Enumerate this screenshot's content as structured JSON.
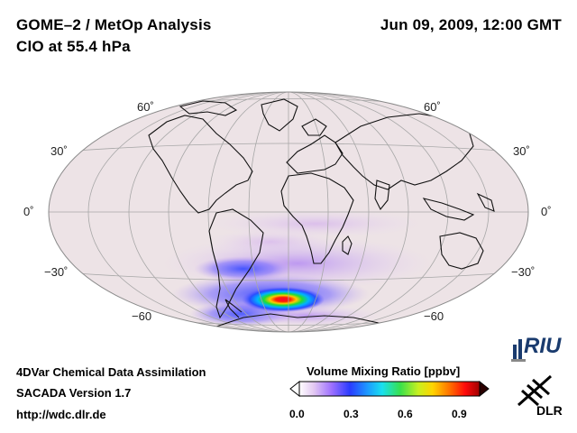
{
  "header": {
    "title_line1": "GOME–2 / MetOp Analysis",
    "title_line2": "ClO at 55.4 hPa",
    "datetime": "Jun 09, 2009, 12:00 GMT"
  },
  "map": {
    "projection": "Hammer-Aitoff",
    "lat_labels": {
      "n60": "60˚",
      "n30": "30˚",
      "eq": "0˚",
      "s30": "−30˚",
      "s60": "−60"
    }
  },
  "footer": {
    "line1": "4DVar Chemical Data Assimilation",
    "line2": "SACADA Version 1.7",
    "line3": "http://wdc.dlr.de"
  },
  "colorbar": {
    "title": "Volume Mixing Ratio [ppbv]",
    "ticks": [
      "0.0",
      "0.3",
      "0.6",
      "0.9"
    ],
    "range": [
      0.0,
      1.0
    ]
  },
  "logos": {
    "riu_text": "RIU",
    "dlr_text": "DLR"
  },
  "colors": {
    "ocean_land_bg": "#ede3e6",
    "grid": "#a7a7a7",
    "coast": "#111111"
  }
}
